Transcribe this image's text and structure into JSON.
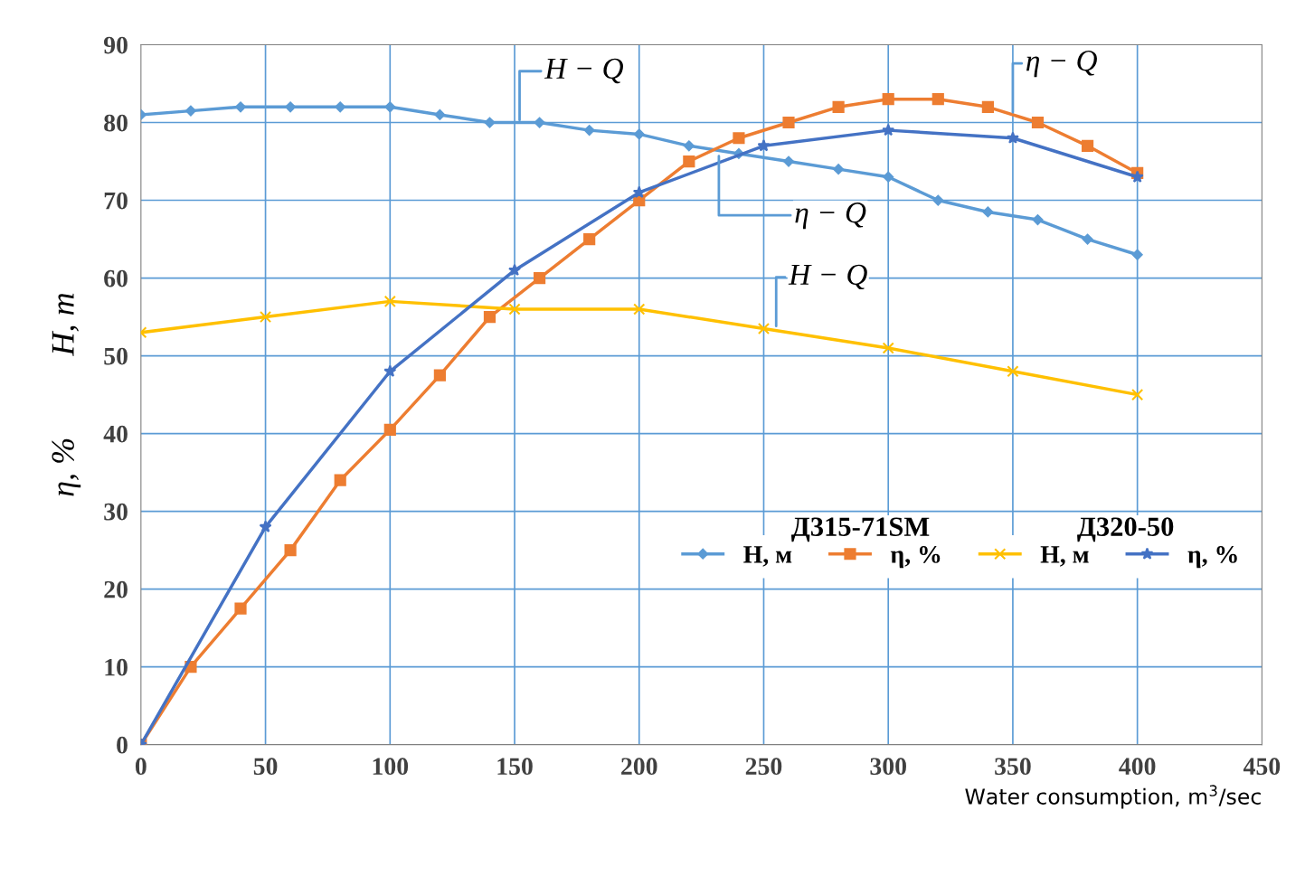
{
  "chart_data": {
    "type": "line",
    "xlabel": "Water consumption, m$^{3}$/sec",
    "ylabel": "η, %          H, m",
    "xlim": [
      0,
      450
    ],
    "xticks": [
      0,
      50,
      100,
      150,
      200,
      250,
      300,
      350,
      400,
      450
    ],
    "ylim": [
      0,
      90
    ],
    "yticks": [
      0,
      10,
      20,
      30,
      40,
      50,
      60,
      70,
      80,
      90
    ],
    "grid": true,
    "legend": "lower right",
    "line_style": "solid",
    "series": [
      {
        "name": "Н, м",
        "color": "#5b9bd5",
        "marker": "diamond",
        "x": [
          0,
          20,
          40,
          60,
          80,
          100,
          120,
          140,
          160,
          180,
          200,
          220,
          240,
          260,
          280,
          300,
          320,
          340,
          360,
          380,
          400
        ],
        "values": [
          81,
          81.5,
          82,
          82,
          82,
          82,
          81,
          80,
          80,
          79,
          78.5,
          77,
          76,
          75,
          74,
          73,
          70,
          68.5,
          67.5,
          65,
          63
        ]
      },
      {
        "name": "η, %",
        "color": "#ed7d31",
        "marker": "square",
        "x": [
          0,
          20,
          40,
          60,
          80,
          100,
          120,
          140,
          160,
          180,
          200,
          220,
          240,
          260,
          280,
          300,
          320,
          340,
          360,
          380,
          400
        ],
        "values": [
          0,
          10,
          17.5,
          25,
          34,
          40.5,
          47.5,
          55,
          60,
          65,
          70,
          75,
          78,
          80,
          82,
          83,
          83,
          82,
          80,
          77,
          73.5
        ]
      },
      {
        "name": "Н, м",
        "color": "#ffc000",
        "marker": "cross",
        "x": [
          0,
          50,
          100,
          150,
          200,
          250,
          300,
          350,
          400
        ],
        "values": [
          53,
          55,
          57,
          56,
          56,
          53.5,
          51,
          48,
          45
        ]
      },
      {
        "name": "η, %",
        "color": "#4472c4",
        "marker": "star",
        "x": [
          0,
          50,
          100,
          150,
          200,
          250,
          300,
          350,
          400
        ],
        "values": [
          0,
          28,
          48,
          61,
          71,
          77,
          79,
          78,
          73
        ]
      }
    ],
    "annotations": [
      {
        "text": "H − Q",
        "x": 152,
        "y": 80
      },
      {
        "text": "η − Q",
        "x": 232,
        "y": 76
      },
      {
        "text": "H − Q",
        "x": 255,
        "y": 53.5
      },
      {
        "text": "η − Q",
        "x": 350,
        "y": 81
      },
      "Д315-71SM",
      "Д320-50"
    ]
  }
}
